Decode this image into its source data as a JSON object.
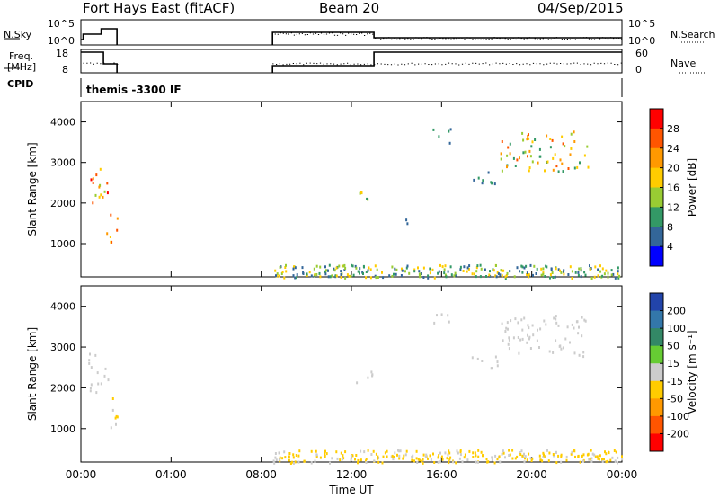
{
  "header": {
    "station": "Fort Hays East (fitACF)",
    "beam": "Beam 20",
    "date": "04/Sep/2015"
  },
  "panels": {
    "nsky_label": "N.Sky",
    "nsearch_label": "N.Search",
    "freq_label_line1": "Freq.",
    "freq_label_line2": "[MHz]",
    "nave_label": "Nave",
    "cpid_label": "CPID",
    "cpid_value": "themis -3300 IF",
    "nsky_ticks": [
      "10^5",
      "10^0"
    ],
    "nsearch_ticks": [
      "10^5",
      "10^0"
    ],
    "freq_ticks": [
      "18",
      "8"
    ],
    "nave_ticks": [
      "60",
      "0"
    ]
  },
  "colorbars": {
    "power": {
      "label": "Power [dB]",
      "ticks": [
        "28",
        "24",
        "20",
        "16",
        "12",
        "8",
        "4"
      ],
      "colors": [
        "#ff0000",
        "#ff5500",
        "#ff9900",
        "#ffcc00",
        "#99cc33",
        "#339966",
        "#336699",
        "#0000ff"
      ]
    },
    "velocity": {
      "label": "Velocity [m s⁻¹]",
      "ticks": [
        "200",
        "100",
        "50",
        "15",
        "-15",
        "-50",
        "-100",
        "-200"
      ],
      "colors": [
        "#2244aa",
        "#3377aa",
        "#338866",
        "#66cc33",
        "#cccccc",
        "#ffcc00",
        "#ff9900",
        "#ff5500",
        "#ff0000"
      ]
    }
  },
  "chart_data": [
    {
      "type": "scatter",
      "title": "Power",
      "xlabel": "",
      "ylabel": "Slant Range [km]",
      "xlim": [
        "00:00",
        "24:00"
      ],
      "ylim": [
        180,
        4500
      ],
      "y_ticks": [
        1000,
        2000,
        3000,
        4000
      ],
      "x_ticks": [
        "00:00",
        "04:00",
        "08:00",
        "12:00",
        "16:00",
        "20:00",
        "00:00"
      ],
      "note_units": "x in hours UT, y in km, z in dB",
      "clusters": [
        {
          "x_range": [
            0.3,
            1.2
          ],
          "y_range": [
            1900,
            2900
          ],
          "value_range": [
            12,
            30
          ]
        },
        {
          "x_range": [
            1.1,
            1.6
          ],
          "y_range": [
            1000,
            1800
          ],
          "value_range": [
            16,
            28
          ]
        },
        {
          "x_range": [
            12.2,
            13.1
          ],
          "y_range": [
            2100,
            2450
          ],
          "value_range": [
            8,
            24
          ]
        },
        {
          "x_range": [
            14.2,
            14.6
          ],
          "y_range": [
            1500,
            1750
          ],
          "value_range": [
            4,
            16
          ]
        },
        {
          "x_range": [
            15.6,
            16.4
          ],
          "y_range": [
            3500,
            3900
          ],
          "value_range": [
            4,
            12
          ]
        },
        {
          "x_range": [
            17.2,
            18.8
          ],
          "y_range": [
            2500,
            2800
          ],
          "value_range": [
            4,
            12
          ]
        },
        {
          "x_range": [
            18.6,
            22.5
          ],
          "y_range": [
            2800,
            3800
          ],
          "value_range": [
            8,
            28
          ]
        },
        {
          "x_range": [
            8.5,
            24
          ],
          "y_range": [
            180,
            500
          ],
          "value_range": [
            4,
            20
          ]
        }
      ]
    },
    {
      "type": "scatter",
      "title": "Velocity",
      "xlabel": "Time UT",
      "ylabel": "Slant Range [km]",
      "xlim": [
        "00:00",
        "24:00"
      ],
      "ylim": [
        180,
        4500
      ],
      "y_ticks": [
        1000,
        2000,
        3000,
        4000
      ],
      "x_ticks": [
        "00:00",
        "04:00",
        "08:00",
        "12:00",
        "16:00",
        "20:00",
        "00:00"
      ],
      "note_units": "x in hours UT, y in km, z in m/s",
      "clusters": [
        {
          "x_range": [
            0.3,
            1.2
          ],
          "y_range": [
            1900,
            2900
          ],
          "value_range": [
            -15,
            15
          ]
        },
        {
          "x_range": [
            1.1,
            1.6
          ],
          "y_range": [
            1000,
            1800
          ],
          "value_range": [
            -50,
            -15
          ]
        },
        {
          "x_range": [
            12.2,
            13.1
          ],
          "y_range": [
            2100,
            2450
          ],
          "value_range": [
            -15,
            15
          ]
        },
        {
          "x_range": [
            15.6,
            16.4
          ],
          "y_range": [
            3500,
            3900
          ],
          "value_range": [
            -15,
            15
          ]
        },
        {
          "x_range": [
            17.2,
            18.8
          ],
          "y_range": [
            2500,
            2800
          ],
          "value_range": [
            -15,
            15
          ]
        },
        {
          "x_range": [
            18.6,
            22.5
          ],
          "y_range": [
            2800,
            3800
          ],
          "value_range": [
            -15,
            15
          ]
        },
        {
          "x_range": [
            8.5,
            24
          ],
          "y_range": [
            180,
            500
          ],
          "value_range": [
            -50,
            -15
          ]
        }
      ]
    }
  ]
}
